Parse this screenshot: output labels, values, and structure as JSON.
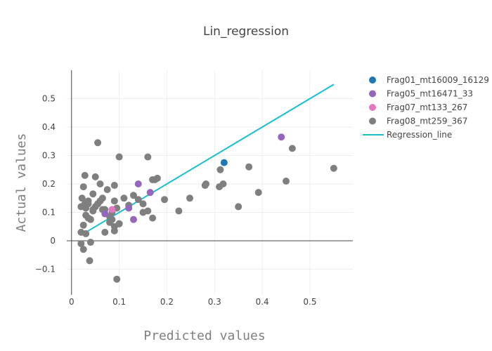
{
  "chart_data": {
    "type": "scatter",
    "title": "Lin_regression",
    "xlabel": "Predicted values",
    "ylabel": "Actual values",
    "xlim": [
      -0.01,
      0.59
    ],
    "ylim": [
      -0.19,
      0.6
    ],
    "x_ticks": [
      0,
      0.1,
      0.2,
      0.3,
      0.4,
      0.5
    ],
    "x_tick_labels": [
      "0",
      "0.1",
      "0.2",
      "0.3",
      "0.4",
      "0.5"
    ],
    "y_ticks": [
      -0.1,
      0,
      0.1,
      0.2,
      0.3,
      0.4,
      0.5
    ],
    "y_tick_labels": [
      "−0.1",
      "0",
      "0.1",
      "0.2",
      "0.3",
      "0.4",
      "0.5"
    ],
    "grid": true,
    "legend_position": "top-right",
    "series": [
      {
        "name": "Frag01_mt16009_16129",
        "mode": "markers",
        "color": "#1f77b4",
        "x": [
          0.32
        ],
        "y": [
          0.275
        ]
      },
      {
        "name": "Frag05_mt16471_33",
        "mode": "markers",
        "color": "#9467bd",
        "x": [
          0.07,
          0.12,
          0.14,
          0.13,
          0.165,
          0.44
        ],
        "y": [
          0.095,
          0.115,
          0.2,
          0.075,
          0.17,
          0.365
        ]
      },
      {
        "name": "Frag07_mt133_267",
        "mode": "markers",
        "color": "#e377c2",
        "x": [
          0.085
        ],
        "y": [
          0.11
        ]
      },
      {
        "name": "Frag08_mt259_367",
        "mode": "markers",
        "color": "#7f7f7f",
        "x": [
          0.02,
          0.022,
          0.025,
          0.028,
          0.03,
          0.035,
          0.04,
          0.045,
          0.05,
          0.055,
          0.06,
          0.065,
          0.07,
          0.075,
          0.08,
          0.085,
          0.09,
          0.095,
          0.1,
          0.02,
          0.025,
          0.03,
          0.035,
          0.045,
          0.05,
          0.06,
          0.07,
          0.08,
          0.09,
          0.1,
          0.11,
          0.12,
          0.13,
          0.14,
          0.15,
          0.16,
          0.17,
          0.175,
          0.18,
          0.195,
          0.225,
          0.248,
          0.28,
          0.282,
          0.31,
          0.312,
          0.318,
          0.35,
          0.372,
          0.392,
          0.45,
          0.463,
          0.55,
          0.028,
          0.035,
          0.04,
          0.055,
          0.09,
          0.1,
          0.16,
          0.095,
          0.02,
          0.025,
          0.03,
          0.038,
          0.045,
          0.055,
          0.065,
          0.085,
          0.09,
          0.15,
          0.17
        ],
        "y": [
          0.12,
          0.15,
          0.19,
          0.13,
          0.115,
          0.14,
          0.075,
          0.165,
          0.225,
          0.13,
          0.2,
          0.15,
          0.11,
          0.18,
          0.065,
          0.1,
          0.195,
          0.115,
          0.295,
          0.03,
          0.055,
          0.09,
          0.08,
          0.11,
          0.12,
          0.14,
          0.03,
          0.085,
          0.035,
          0.06,
          0.15,
          0.125,
          0.16,
          0.145,
          0.13,
          0.295,
          0.08,
          0.215,
          0.22,
          0.145,
          0.105,
          0.15,
          0.195,
          0.2,
          0.19,
          0.25,
          0.2,
          0.12,
          0.26,
          0.17,
          0.21,
          0.325,
          0.255,
          0.23,
          0.13,
          -0.005,
          0.345,
          0.05,
          0.06,
          0.105,
          -0.135,
          -0.01,
          -0.03,
          0.025,
          -0.07,
          0.105,
          0.13,
          0.11,
          0.075,
          0.14,
          0.1,
          0.215
        ]
      },
      {
        "name": "Regression_line",
        "mode": "line",
        "color": "#17becf",
        "x": [
          0.02,
          0.55
        ],
        "y": [
          0.02,
          0.55
        ]
      }
    ]
  }
}
